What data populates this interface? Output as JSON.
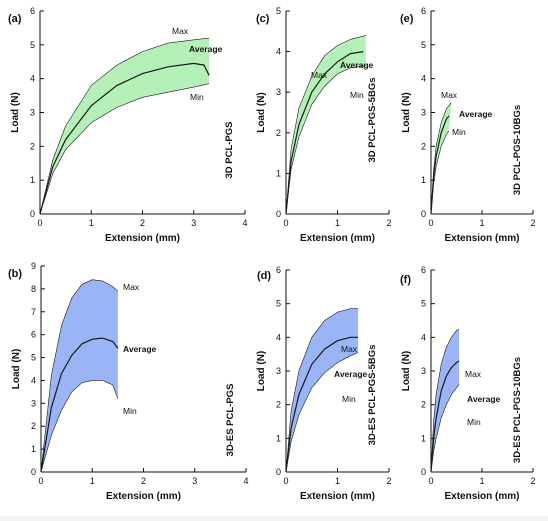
{
  "figure": {
    "y_axis_title": "Load (N)",
    "x_axis_title": "Extension (mm)",
    "annotations": {
      "max": "Max",
      "average": "Average",
      "min": "Min"
    },
    "colors": {
      "green_band": "#b5f0b8",
      "blue_band": "#9bb4f5",
      "curve": "#1a1a1a",
      "axis": "#111111"
    }
  },
  "chart_data": [
    {
      "type": "area",
      "panel_label": "(a)",
      "side_label": "3D PCL-PGS",
      "xlim": [
        0,
        4
      ],
      "ylim": [
        0,
        6
      ],
      "xticks": [
        "0",
        "1",
        "2",
        "3",
        "4"
      ],
      "yticks": [
        "0",
        "1",
        "2",
        "3",
        "4",
        "5",
        "6"
      ],
      "band_color": "#b5f0b8",
      "series": [
        {
          "name": "Max",
          "x": [
            0,
            0.25,
            0.5,
            1,
            1.5,
            2,
            2.5,
            3,
            3.3
          ],
          "y": [
            0,
            1.6,
            2.6,
            3.8,
            4.4,
            4.8,
            5.05,
            5.15,
            5.2
          ]
        },
        {
          "name": "Average",
          "x": [
            0,
            0.25,
            0.5,
            1,
            1.5,
            2,
            2.5,
            3,
            3.2,
            3.3
          ],
          "y": [
            0,
            1.4,
            2.2,
            3.2,
            3.8,
            4.15,
            4.35,
            4.45,
            4.4,
            4.1
          ]
        },
        {
          "name": "Min",
          "x": [
            0,
            0.25,
            0.5,
            1,
            1.5,
            2,
            2.5,
            3,
            3.3
          ],
          "y": [
            0,
            1.2,
            1.9,
            2.7,
            3.15,
            3.45,
            3.6,
            3.75,
            3.85
          ]
        }
      ]
    },
    {
      "type": "area",
      "panel_label": "(c)",
      "side_label": "3D PCL-PGS-5BGs",
      "xlim": [
        0,
        2
      ],
      "ylim": [
        0,
        5
      ],
      "xticks": [
        "0",
        "1",
        "2"
      ],
      "yticks": [
        "0",
        "1",
        "2",
        "3",
        "4",
        "5"
      ],
      "band_color": "#b5f0b8",
      "series": [
        {
          "name": "Max",
          "x": [
            0,
            0.1,
            0.25,
            0.5,
            0.75,
            1,
            1.25,
            1.55
          ],
          "y": [
            0,
            1.6,
            2.6,
            3.4,
            3.9,
            4.15,
            4.3,
            4.4
          ]
        },
        {
          "name": "Average",
          "x": [
            0,
            0.1,
            0.25,
            0.5,
            0.75,
            1,
            1.25,
            1.5
          ],
          "y": [
            0,
            1.3,
            2.2,
            3.0,
            3.45,
            3.75,
            3.95,
            4.0
          ]
        },
        {
          "name": "Min",
          "x": [
            0,
            0.1,
            0.25,
            0.5,
            0.75,
            1,
            1.25,
            1.55
          ],
          "y": [
            0,
            1.1,
            1.9,
            2.7,
            3.15,
            3.45,
            3.6,
            3.65
          ]
        }
      ]
    },
    {
      "type": "area",
      "panel_label": "(e)",
      "side_label": "3D PCL-PGS-10BGs",
      "xlim": [
        0,
        2
      ],
      "ylim": [
        0,
        6
      ],
      "xticks": [
        "0",
        "1",
        "2"
      ],
      "yticks": [
        "0",
        "1",
        "2",
        "3",
        "4",
        "5",
        "6"
      ],
      "band_color": "#b5f0b8",
      "series": [
        {
          "name": "Max",
          "x": [
            0,
            0.05,
            0.1,
            0.2,
            0.3,
            0.4
          ],
          "y": [
            0,
            1.3,
            2.0,
            2.7,
            3.1,
            3.3
          ]
        },
        {
          "name": "Average",
          "x": [
            0,
            0.05,
            0.1,
            0.2,
            0.3,
            0.35
          ],
          "y": [
            0,
            1.1,
            1.7,
            2.4,
            2.8,
            2.9
          ]
        },
        {
          "name": "Min",
          "x": [
            0,
            0.05,
            0.1,
            0.2,
            0.3,
            0.35
          ],
          "y": [
            0,
            0.9,
            1.4,
            2.0,
            2.35,
            2.45
          ]
        }
      ]
    },
    {
      "type": "area",
      "panel_label": "(b)",
      "side_label": "3D-ES PCL-PGS",
      "xlim": [
        0,
        4
      ],
      "ylim": [
        0,
        9
      ],
      "xticks": [
        "0",
        "1",
        "2",
        "3",
        "4"
      ],
      "yticks": [
        "0",
        "1",
        "2",
        "3",
        "4",
        "5",
        "6",
        "7",
        "8",
        "9"
      ],
      "band_color": "#9bb4f5",
      "series": [
        {
          "name": "Max",
          "x": [
            0,
            0.2,
            0.4,
            0.6,
            0.8,
            1,
            1.2,
            1.4,
            1.5
          ],
          "y": [
            0,
            4.2,
            6.4,
            7.6,
            8.2,
            8.4,
            8.35,
            8.1,
            7.9
          ]
        },
        {
          "name": "Average",
          "x": [
            0,
            0.2,
            0.4,
            0.6,
            0.8,
            1,
            1.2,
            1.4,
            1.5
          ],
          "y": [
            0,
            2.8,
            4.3,
            5.1,
            5.6,
            5.8,
            5.85,
            5.7,
            5.4
          ]
        },
        {
          "name": "Min",
          "x": [
            0,
            0.2,
            0.4,
            0.6,
            0.8,
            1,
            1.2,
            1.4,
            1.5
          ],
          "y": [
            0,
            1.6,
            2.7,
            3.5,
            3.9,
            4.0,
            4.0,
            3.8,
            3.2
          ]
        }
      ]
    },
    {
      "type": "area",
      "panel_label": "(d)",
      "side_label": "3D-ES PCL-PGS-5BGs",
      "xlim": [
        0,
        2
      ],
      "ylim": [
        0,
        6
      ],
      "xticks": [
        "0",
        "1",
        "2"
      ],
      "yticks": [
        "0",
        "1",
        "2",
        "3",
        "4",
        "5",
        "6"
      ],
      "band_color": "#9bb4f5",
      "series": [
        {
          "name": "Max",
          "x": [
            0,
            0.1,
            0.25,
            0.5,
            0.75,
            1,
            1.25,
            1.4
          ],
          "y": [
            0,
            1.8,
            3.0,
            4.0,
            4.5,
            4.75,
            4.85,
            4.85
          ]
        },
        {
          "name": "Average",
          "x": [
            0,
            0.1,
            0.25,
            0.5,
            0.75,
            1,
            1.25,
            1.4
          ],
          "y": [
            0,
            1.3,
            2.3,
            3.2,
            3.65,
            3.9,
            4.0,
            4.0
          ]
        },
        {
          "name": "Min",
          "x": [
            0,
            0.1,
            0.25,
            0.5,
            0.75,
            1,
            1.25,
            1.4
          ],
          "y": [
            0,
            0.9,
            1.7,
            2.5,
            2.95,
            3.25,
            3.45,
            3.55
          ]
        }
      ]
    },
    {
      "type": "area",
      "panel_label": "(f)",
      "side_label": "3D-ES PCL-PGS-10BGs",
      "xlim": [
        0,
        2
      ],
      "ylim": [
        0,
        6
      ],
      "xticks": [
        "0",
        "1",
        "2"
      ],
      "yticks": [
        "0",
        "1",
        "2",
        "3",
        "4",
        "5",
        "6"
      ],
      "band_color": "#9bb4f5",
      "series": [
        {
          "name": "Max",
          "x": [
            0,
            0.05,
            0.1,
            0.2,
            0.3,
            0.4,
            0.5,
            0.55
          ],
          "y": [
            0,
            1.5,
            2.3,
            3.2,
            3.7,
            4.0,
            4.2,
            4.25
          ]
        },
        {
          "name": "Average",
          "x": [
            0,
            0.05,
            0.1,
            0.2,
            0.3,
            0.4,
            0.5,
            0.55
          ],
          "y": [
            0,
            1.0,
            1.6,
            2.4,
            2.85,
            3.1,
            3.25,
            3.3
          ]
        },
        {
          "name": "Min",
          "x": [
            0,
            0.05,
            0.1,
            0.2,
            0.3,
            0.4,
            0.5,
            0.55
          ],
          "y": [
            0,
            0.6,
            1.0,
            1.6,
            2.0,
            2.3,
            2.5,
            2.6
          ]
        }
      ]
    }
  ]
}
